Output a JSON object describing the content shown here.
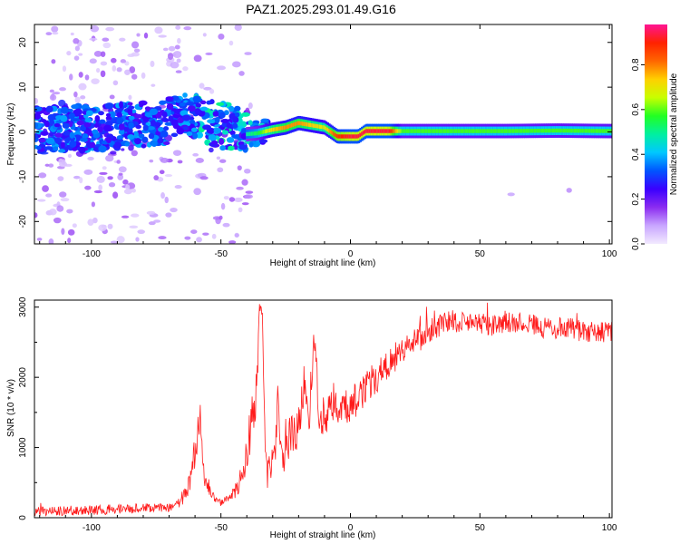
{
  "figure_title": "PAZ1.2025.293.01.49.G16",
  "chart_data": [
    {
      "type": "heatmap",
      "title": "PAZ1.2025.293.01.49.G16",
      "xlabel": "Height of straight line (km)",
      "ylabel": "Frequency (Hz)",
      "xlim": [
        -122,
        101
      ],
      "ylim": [
        -25,
        24
      ],
      "xticks": [
        -100,
        -50,
        0,
        50,
        100
      ],
      "yticks": [
        -20,
        -10,
        0,
        10,
        20
      ],
      "colorbar": {
        "label": "Normalized spectral amplitude",
        "range": [
          0,
          0.98
        ],
        "ticks": [
          0,
          0.2,
          0.4,
          0.6,
          0.8
        ],
        "tick_labels": [
          "0.0",
          "0.2",
          "0.4",
          "0.6",
          "0.8"
        ],
        "colormap": [
          "#f2eaff",
          "#c9a6ff",
          "#8b2cf0",
          "#3a00ff",
          "#0055ff",
          "#00c8ff",
          "#00f0a0",
          "#22ff22",
          "#c8ff00",
          "#ffd000",
          "#ff6600",
          "#ff2200",
          "#ff1493"
        ]
      },
      "ridge": {
        "description": "dominant tone frequency vs height",
        "x": [
          -120,
          -100,
          -80,
          -70,
          -65,
          -60,
          -55,
          -50,
          -45,
          -40,
          -36,
          -30,
          -25,
          -20,
          -15,
          -10,
          -5,
          0,
          3,
          6,
          10,
          15,
          20,
          40,
          60,
          80,
          100
        ],
        "freq": [
          0.5,
          1.0,
          1.5,
          2.5,
          5.0,
          3.5,
          2.0,
          1.5,
          1.0,
          -0.5,
          -0.3,
          0.5,
          1.0,
          2.0,
          1.5,
          1.0,
          -1.0,
          -1.0,
          -1.0,
          0.2,
          0.2,
          0.2,
          0.2,
          0.2,
          0.2,
          0.3,
          0.2
        ],
        "amplitude": [
          0.15,
          0.25,
          0.25,
          0.25,
          0.45,
          0.45,
          0.35,
          0.3,
          0.3,
          0.5,
          0.55,
          0.75,
          0.8,
          0.8,
          0.75,
          0.7,
          0.9,
          0.95,
          0.95,
          0.95,
          0.95,
          0.95,
          0.6,
          0.6,
          0.6,
          0.6,
          0.6
        ]
      }
    },
    {
      "type": "line",
      "xlabel": "Height of straight line (km)",
      "ylabel": "SNR (10 * v/v)",
      "xlim": [
        -122,
        101
      ],
      "ylim": [
        0,
        3100
      ],
      "xticks": [
        -100,
        -50,
        0,
        50,
        100
      ],
      "yticks": [
        0,
        1000,
        2000,
        3000
      ],
      "series": [
        {
          "name": "SNR",
          "color": "#ff1a1a",
          "x": [
            -122,
            -110,
            -100,
            -90,
            -80,
            -75,
            -70,
            -66,
            -62,
            -60,
            -58,
            -57,
            -56,
            -54,
            -52,
            -50,
            -48,
            -46,
            -44,
            -42,
            -40,
            -38,
            -36,
            -35,
            -34,
            -33,
            -32,
            -30,
            -28,
            -26,
            -25,
            -24,
            -22,
            -20,
            -18,
            -16,
            -14,
            -12,
            -10,
            -5,
            0,
            5,
            10,
            15,
            20,
            25,
            30,
            35,
            40,
            45,
            50,
            55,
            60,
            65,
            70,
            75,
            80,
            85,
            90,
            95,
            101
          ],
          "y": [
            90,
            100,
            110,
            120,
            130,
            140,
            150,
            200,
            500,
            900,
            1500,
            700,
            500,
            350,
            250,
            220,
            250,
            300,
            400,
            600,
            900,
            1400,
            2000,
            3050,
            2900,
            900,
            600,
            700,
            1600,
            900,
            1200,
            1100,
            1200,
            1300,
            1900,
            1400,
            2500,
            1400,
            1500,
            1550,
            1600,
            1800,
            2000,
            2200,
            2400,
            2500,
            2650,
            2750,
            2800,
            2800,
            2780,
            2750,
            2800,
            2780,
            2760,
            2700,
            2700,
            2700,
            2650,
            2650,
            2650
          ],
          "noise": [
            60,
            70,
            70,
            70,
            70,
            70,
            70,
            80,
            150,
            250,
            200,
            150,
            100,
            80,
            60,
            60,
            60,
            80,
            120,
            200,
            300,
            400,
            400,
            100,
            100,
            300,
            250,
            300,
            400,
            350,
            350,
            300,
            300,
            300,
            300,
            300,
            300,
            300,
            300,
            250,
            250,
            250,
            250,
            220,
            200,
            200,
            180,
            170,
            160,
            160,
            160,
            160,
            160,
            160,
            150,
            150,
            150,
            150,
            150,
            150,
            150
          ]
        }
      ]
    }
  ]
}
